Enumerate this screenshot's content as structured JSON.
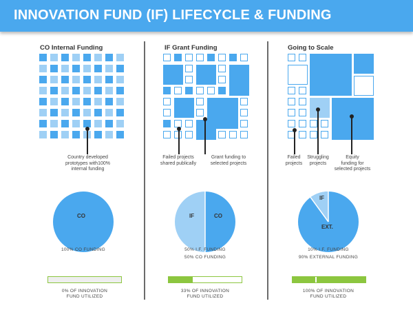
{
  "header": {
    "title": "INNOVATION FUND (IF) LIFECYCLE & FUNDING"
  },
  "colors": {
    "banner": "#4aa8ee",
    "tile_fill": "#4aa8ee",
    "tile_light": "#9fd0f5",
    "bar": "#8cc63f"
  },
  "columns": [
    {
      "title": "CO Internal Funding",
      "captions": [
        "Country developed\nprototypes with100%\ninternal funding"
      ],
      "pie": {
        "labels": [
          "CO"
        ],
        "values": [
          100
        ]
      },
      "funding_lines": [
        "100% CO FUNDING"
      ],
      "bar": {
        "utilized_fraction": 0.0,
        "caption": "0% OF INNOVATION\nFUND UTILIZED"
      }
    },
    {
      "title": "IF Grant Funding",
      "captions": [
        "Failed projects\nshared publically",
        "Grant funding to\nselected projects"
      ],
      "pie": {
        "labels": [
          "IF",
          "CO"
        ],
        "values": [
          50,
          50
        ]
      },
      "funding_lines": [
        "50% I.F. FUNDING",
        "50% CO FUNDING"
      ],
      "bar": {
        "utilized_fraction": 0.33,
        "caption": "33% OF INNOVATION\nFUND UTILIZED"
      }
    },
    {
      "title": "Going to Scale",
      "captions": [
        "Failed\nprojects",
        "Struggling\nprojects",
        "Equity\nfunding for\nselected projects"
      ],
      "pie": {
        "labels": [
          "IF",
          "EXT."
        ],
        "values": [
          10,
          90
        ]
      },
      "funding_lines": [
        "10% I.F. FUNDING",
        "90% EXTERNAL FUNDING"
      ],
      "bar": {
        "utilized_fraction": 1.0,
        "caption": "100% OF INNOVATION\nFUND UTILIZED"
      }
    }
  ]
}
